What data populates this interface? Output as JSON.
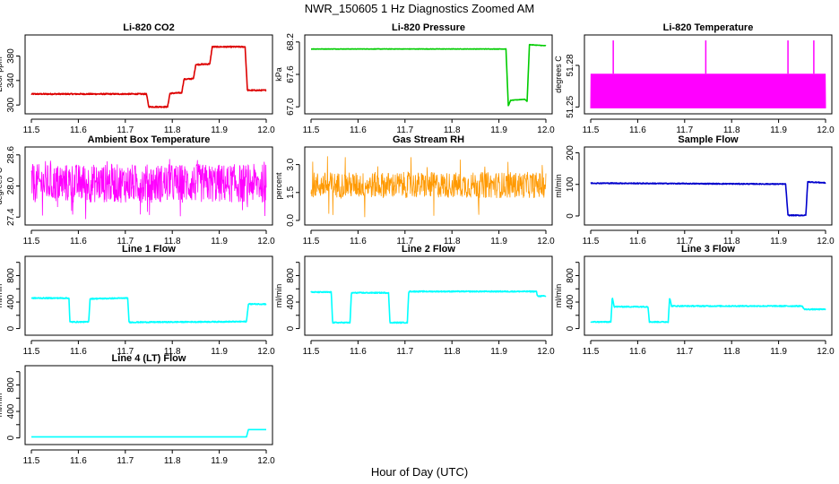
{
  "figure": {
    "title": "NWR_150605  1 Hz Diagnostics Zoomed AM",
    "xlabel": "Hour of Day (UTC)"
  },
  "chart_data": [
    {
      "type": "line",
      "title": "Li-820 CO2",
      "ylabel": "Licor ppm",
      "color": "#dd0000",
      "xlim": [
        11.5,
        12.0
      ],
      "ylim": [
        290,
        410
      ],
      "xticks": [
        11.5,
        11.6,
        11.7,
        11.8,
        11.9,
        12.0
      ],
      "xticklabels": [
        "11.5",
        "11.6",
        "11.7",
        "11.8",
        "11.9",
        "12.0"
      ],
      "yticks": [
        300,
        340,
        380
      ],
      "yticklabels": [
        "300",
        "340",
        "380"
      ],
      "noise": 1,
      "series": [
        {
          "x": [
            11.5,
            11.745,
            11.75,
            11.79,
            11.795,
            11.82,
            11.825,
            11.845,
            11.85,
            11.88,
            11.885,
            11.955,
            11.96,
            12.0
          ],
          "y": [
            318,
            318,
            297,
            297,
            319,
            320,
            342,
            343,
            366,
            367,
            395,
            395,
            324,
            324
          ]
        }
      ]
    },
    {
      "type": "line",
      "title": "Li-820 Pressure",
      "ylabel": "kPa",
      "color": "#00cc00",
      "xlim": [
        11.5,
        12.0
      ],
      "ylim": [
        66.92,
        68.28
      ],
      "xticks": [
        11.5,
        11.6,
        11.7,
        11.8,
        11.9,
        12.0
      ],
      "xticklabels": [
        "11.5",
        "11.6",
        "11.7",
        "11.8",
        "11.9",
        "12.0"
      ],
      "yticks": [
        67.0,
        67.6,
        68.2
      ],
      "yticklabels": [
        "67.0",
        "67.6",
        "68.2"
      ],
      "noise": 0.004,
      "series": [
        {
          "x": [
            11.5,
            11.915,
            11.92,
            11.925,
            11.955,
            11.96,
            11.965,
            12.0
          ],
          "y": [
            68.07,
            68.07,
            67.02,
            67.12,
            67.14,
            67.1,
            68.15,
            68.13
          ]
        }
      ]
    },
    {
      "type": "line",
      "title": "Li-820 Temperature",
      "ylabel": "degrees C",
      "color": "#ff00ff",
      "xlim": [
        11.5,
        12.0
      ],
      "ylim": [
        51.247,
        51.3
      ],
      "xticks": [
        11.5,
        11.6,
        11.7,
        11.8,
        11.9,
        12.0
      ],
      "xticklabels": [
        "11.5",
        "11.6",
        "11.7",
        "11.8",
        "11.9",
        "12.0"
      ],
      "yticks": [
        51.25,
        51.28
      ],
      "yticklabels": [
        "51.25",
        "51.28"
      ],
      "band": [
        51.249,
        51.274
      ],
      "spikes": [
        11.548,
        11.745,
        11.92,
        11.975
      ],
      "spike_top": 51.298,
      "series": [
        {
          "x": [
            11.5,
            12.0
          ],
          "y": [
            51.249,
            51.274
          ]
        }
      ]
    },
    {
      "type": "line",
      "title": "Ambient Box Temperature",
      "ylabel": "degrees C",
      "color": "#ff00ff",
      "xlim": [
        11.5,
        12.0
      ],
      "ylim": [
        27.3,
        28.7
      ],
      "xticks": [
        11.5,
        11.6,
        11.7,
        11.8,
        11.9,
        12.0
      ],
      "xticklabels": [
        "11.5",
        "11.6",
        "11.7",
        "11.8",
        "11.9",
        "12.0"
      ],
      "yticks": [
        27.4,
        28.0,
        28.6
      ],
      "yticklabels": [
        "27.4",
        "28.0",
        "28.6"
      ],
      "noise_band": [
        27.7,
        28.45
      ],
      "extreme": [
        27.35,
        28.55
      ],
      "series": [
        {
          "x": [
            11.5,
            12.0
          ],
          "y": [
            28.05,
            28.05
          ]
        }
      ]
    },
    {
      "type": "line",
      "title": "Gas Stream RH",
      "ylabel": "percent",
      "color": "#ff9900",
      "xlim": [
        11.5,
        12.0
      ],
      "ylim": [
        -0.1,
        3.8
      ],
      "xticks": [
        11.5,
        11.6,
        11.7,
        11.8,
        11.9,
        12.0
      ],
      "xticklabels": [
        "11.5",
        "11.6",
        "11.7",
        "11.8",
        "11.9",
        "12.0"
      ],
      "yticks": [
        0.0,
        1.0,
        2.0,
        3.0
      ],
      "yticklabels": [
        "0.0",
        "1.5",
        "3.0"
      ],
      "yticks_at": [
        0.0,
        1.5,
        3.0
      ],
      "noise_band": [
        1.2,
        2.6
      ],
      "extreme": [
        0.05,
        3.5
      ],
      "series": [
        {
          "x": [
            11.5,
            12.0
          ],
          "y": [
            1.9,
            1.9
          ]
        }
      ]
    },
    {
      "type": "line",
      "title": "Sample Flow",
      "ylabel": "ml/min",
      "color": "#0000cc",
      "xlim": [
        11.5,
        12.0
      ],
      "ylim": [
        -20,
        210
      ],
      "xticks": [
        11.5,
        11.6,
        11.7,
        11.8,
        11.9,
        12.0
      ],
      "xticklabels": [
        "11.5",
        "11.6",
        "11.7",
        "11.8",
        "11.9",
        "12.0"
      ],
      "yticks": [
        0,
        100,
        200
      ],
      "yticklabels": [
        "0",
        "100",
        "200"
      ],
      "noise": 1.5,
      "series": [
        {
          "x": [
            11.5,
            11.915,
            11.92,
            11.958,
            11.962,
            12.0
          ],
          "y": [
            104,
            101,
            2,
            2,
            108,
            105
          ]
        }
      ]
    },
    {
      "type": "line",
      "title": "Line 1 Flow",
      "ylabel": "ml/min",
      "color": "#00ffff",
      "xlim": [
        11.5,
        12.0
      ],
      "ylim": [
        -60,
        1050
      ],
      "xticks": [
        11.5,
        11.6,
        11.7,
        11.8,
        11.9,
        12.0
      ],
      "xticklabels": [
        "11.5",
        "11.6",
        "11.7",
        "11.8",
        "11.9",
        "12.0"
      ],
      "yticks": [
        0,
        200,
        400,
        600,
        800,
        1000
      ],
      "yticklabels": [
        "0",
        "",
        "400",
        "",
        "800",
        ""
      ],
      "noise": 8,
      "series": [
        {
          "x": [
            11.5,
            11.58,
            11.582,
            11.622,
            11.625,
            11.705,
            11.708,
            11.958,
            11.962,
            12.0
          ],
          "y": [
            460,
            460,
            100,
            100,
            450,
            460,
            95,
            105,
            370,
            370
          ]
        }
      ]
    },
    {
      "type": "line",
      "title": "Line 2 Flow",
      "ylabel": "ml/min",
      "color": "#00ffff",
      "xlim": [
        11.5,
        12.0
      ],
      "ylim": [
        -60,
        1050
      ],
      "xticks": [
        11.5,
        11.6,
        11.7,
        11.8,
        11.9,
        12.0
      ],
      "xticklabels": [
        "11.5",
        "11.6",
        "11.7",
        "11.8",
        "11.9",
        "12.0"
      ],
      "yticks": [
        0,
        200,
        400,
        600,
        800,
        1000
      ],
      "yticklabels": [
        "0",
        "",
        "400",
        "",
        "800",
        ""
      ],
      "noise": 8,
      "series": [
        {
          "x": [
            11.5,
            11.543,
            11.546,
            11.583,
            11.586,
            11.665,
            11.668,
            11.705,
            11.708,
            11.98,
            11.982,
            12.0
          ],
          "y": [
            550,
            550,
            90,
            90,
            540,
            540,
            90,
            90,
            560,
            560,
            490,
            490
          ]
        }
      ]
    },
    {
      "type": "line",
      "title": "Line 3 Flow",
      "ylabel": "ml/min",
      "color": "#00ffff",
      "xlim": [
        11.5,
        12.0
      ],
      "ylim": [
        -60,
        1050
      ],
      "xticks": [
        11.5,
        11.6,
        11.7,
        11.8,
        11.9,
        12.0
      ],
      "xticklabels": [
        "11.5",
        "11.6",
        "11.7",
        "11.8",
        "11.9",
        "12.0"
      ],
      "yticks": [
        0,
        200,
        400,
        600,
        800,
        1000
      ],
      "yticklabels": [
        "0",
        "",
        "400",
        "",
        "800",
        ""
      ],
      "noise": 8,
      "series": [
        {
          "x": [
            11.5,
            11.543,
            11.546,
            11.55,
            11.622,
            11.625,
            11.665,
            11.668,
            11.672,
            11.95,
            11.955,
            12.0
          ],
          "y": [
            100,
            100,
            480,
            330,
            330,
            100,
            100,
            470,
            340,
            340,
            290,
            290
          ]
        }
      ]
    },
    {
      "type": "line",
      "title": "Line 4 (LT) Flow",
      "ylabel": "ml/min",
      "color": "#00ffff",
      "xlim": [
        11.5,
        12.0
      ],
      "ylim": [
        -60,
        1050
      ],
      "xticks": [
        11.5,
        11.6,
        11.7,
        11.8,
        11.9,
        12.0
      ],
      "xticklabels": [
        "11.5",
        "11.6",
        "11.7",
        "11.8",
        "11.9",
        "12.0"
      ],
      "yticks": [
        0,
        200,
        400,
        600,
        800,
        1000
      ],
      "yticklabels": [
        "0",
        "",
        "400",
        "",
        "800",
        ""
      ],
      "noise": 0,
      "series": [
        {
          "x": [
            11.5,
            11.958,
            11.962,
            12.0
          ],
          "y": [
            15,
            15,
            125,
            125
          ]
        }
      ]
    }
  ]
}
